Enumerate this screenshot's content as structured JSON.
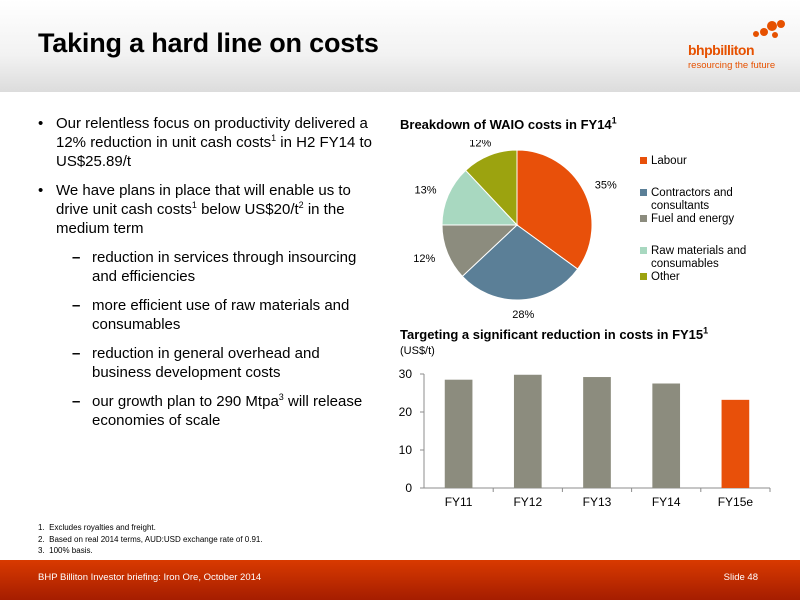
{
  "slide": {
    "title": "Taking a hard line on costs",
    "logo": {
      "name": "bhpbilliton",
      "tagline": "resourcing the future"
    },
    "bullets": [
      {
        "pre": "Our relentless focus on productivity delivered a 12% reduction in unit cash costs",
        "sup": "1",
        "post": " in H2 FY14 to US$25.89/t"
      },
      {
        "pre": "We have plans in place that will enable us to drive unit cash costs",
        "sup": "1",
        "mid": " below US$20/t",
        "sup2": "2",
        "post": " in the medium term"
      }
    ],
    "subbullets": [
      {
        "text": "reduction in services through insourcing and efficiencies"
      },
      {
        "text": "more efficient use of raw materials and consumables"
      },
      {
        "text": "reduction in general overhead and business development costs"
      },
      {
        "pre": "our growth plan to 290 Mtpa",
        "sup": "3",
        "post": " will release economies of scale"
      }
    ],
    "footnotes": [
      "1.  Excludes royalties and freight.",
      "2.  Based on real 2014 terms, AUD:USD exchange rate of 0.91.",
      "3.  100% basis."
    ],
    "footer": {
      "left": "BHP Billiton Investor briefing: Iron Ore, October 2014",
      "right": "Slide 48"
    }
  },
  "chart_data": [
    {
      "type": "pie",
      "title": "Breakdown of WAIO costs in FY14",
      "title_sup": "1",
      "slices": [
        {
          "label": "Labour",
          "value": 35,
          "display": "35%",
          "color": "#E8500A"
        },
        {
          "label": "Contractors and consultants",
          "value": 28,
          "display": "28%",
          "color": "#5B7F97"
        },
        {
          "label": "Fuel and energy",
          "value": 12,
          "display": "12%",
          "color": "#8C8C7E"
        },
        {
          "label": "Raw materials and consumables",
          "value": 13,
          "display": "13%",
          "color": "#A8D8C0"
        },
        {
          "label": "Other",
          "value": 12,
          "display": "12%",
          "color": "#9CA30F"
        }
      ],
      "legend_position": "right"
    },
    {
      "type": "bar",
      "title": "Targeting a significant reduction in costs in FY15",
      "title_sup": "1",
      "ylabel": "(US$/t)",
      "categories": [
        "FY11",
        "FY12",
        "FY13",
        "FY14",
        "FY15e"
      ],
      "values": [
        28.5,
        29.8,
        29.2,
        27.5,
        23.2
      ],
      "colors": [
        "#8C8C7E",
        "#8C8C7E",
        "#8C8C7E",
        "#8C8C7E",
        "#E8500A"
      ],
      "ylim": [
        0,
        30
      ],
      "yticks": [
        0,
        10,
        20,
        30
      ],
      "grid": false
    }
  ]
}
